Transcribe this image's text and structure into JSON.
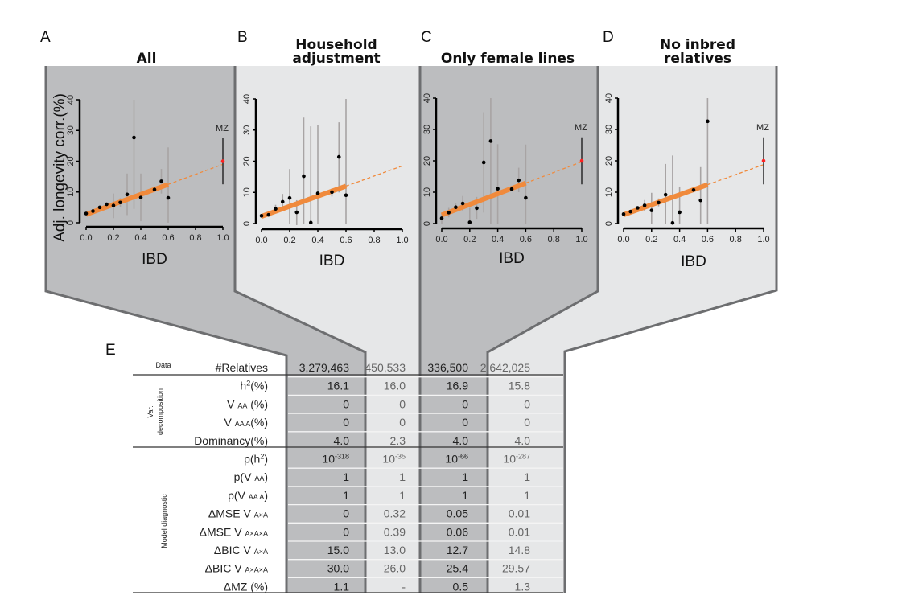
{
  "colors": {
    "dark_panel": "#bcbdbf",
    "light_panel": "#e6e7e8",
    "border": "#6d6e70",
    "fit": "#f08a3c",
    "errbar": "#a8a4a4",
    "mz_point": "#ff2020"
  },
  "panels": [
    {
      "letter": "A",
      "title": [
        "All"
      ]
    },
    {
      "letter": "B",
      "title": [
        "Household",
        "adjustment"
      ]
    },
    {
      "letter": "C",
      "title": [
        "Only female lines"
      ]
    },
    {
      "letter": "D",
      "title": [
        "No inbred",
        "relatives"
      ]
    }
  ],
  "chart_data": [
    {
      "type": "scatter",
      "panel": "A",
      "title": "All",
      "xlabel": "IBD",
      "ylabel": "Adj. longevity corr.(%)",
      "xlim": [
        0,
        1
      ],
      "ylim": [
        0,
        40
      ],
      "xticks": [
        "0.0",
        "0.2",
        "0.4",
        "0.6",
        "0.8",
        "1.0"
      ],
      "yticks": [
        "0",
        "10",
        "20",
        "30",
        "40"
      ],
      "x": [
        0,
        0.05,
        0.1,
        0.15,
        0.2,
        0.25,
        0.3,
        0.35,
        0.4,
        0.5,
        0.55,
        0.6
      ],
      "y": [
        3,
        3.8,
        5,
        6,
        5.6,
        6.6,
        9.2,
        27.7,
        8.2,
        10.8,
        13.5,
        8.1
      ],
      "ci": [
        [
          2.8,
          3.2
        ],
        [
          3.5,
          4.1
        ],
        [
          4.6,
          5.4
        ],
        [
          5.4,
          6.6
        ],
        [
          1.5,
          9.5
        ],
        [
          5,
          8
        ],
        [
          2.5,
          16
        ],
        [
          4.5,
          40
        ],
        [
          0.5,
          16
        ],
        [
          10,
          11.5
        ],
        [
          9.5,
          17.5
        ],
        [
          0,
          24.5
        ]
      ],
      "fit": {
        "intercept": 2.7,
        "slope": 16.3
      },
      "mz": {
        "label": "MZ",
        "x": 1.0,
        "y": 20,
        "ci": [
          12.5,
          27.5
        ]
      }
    },
    {
      "type": "scatter",
      "panel": "B",
      "title": "Household adjustment",
      "xlabel": "IBD",
      "xlim": [
        0,
        1
      ],
      "ylim": [
        0,
        40
      ],
      "xticks": [
        "0.0",
        "0.2",
        "0.4",
        "0.6",
        "0.8",
        "1.0"
      ],
      "yticks": [
        "0",
        "10",
        "20",
        "30",
        "40"
      ],
      "x": [
        0,
        0.05,
        0.1,
        0.15,
        0.2,
        0.25,
        0.3,
        0.35,
        0.4,
        0.5,
        0.55,
        0.6
      ],
      "y": [
        2.5,
        2.8,
        4.7,
        7,
        8.2,
        3.6,
        15.2,
        0.3,
        9.7,
        10.1,
        21.4,
        9.1
      ],
      "ci": [
        [
          2.3,
          2.7
        ],
        [
          2.5,
          3.1
        ],
        [
          3.5,
          6
        ],
        [
          4.5,
          9.5
        ],
        [
          0,
          17.5
        ],
        [
          -0.5,
          7.5
        ],
        [
          0,
          34
        ],
        [
          0,
          31.2
        ],
        [
          0,
          31.5
        ],
        [
          8.7,
          11.3
        ],
        [
          10,
          32.5
        ],
        [
          0,
          40
        ]
      ],
      "fit": {
        "intercept": 2.3,
        "slope": 16.2
      }
    },
    {
      "type": "scatter",
      "panel": "C",
      "title": "Only female lines",
      "xlabel": "IBD",
      "xlim": [
        0,
        1
      ],
      "ylim": [
        0,
        40
      ],
      "xticks": [
        "0.0",
        "0.2",
        "0.4",
        "0.6",
        "0.8",
        "1.0"
      ],
      "yticks": [
        "0",
        "10",
        "20",
        "30",
        "40"
      ],
      "x": [
        0,
        0.05,
        0.1,
        0.15,
        0.2,
        0.25,
        0.3,
        0.35,
        0.4,
        0.5,
        0.55,
        0.6
      ],
      "y": [
        1.7,
        3.5,
        5.2,
        6.4,
        0.4,
        4.9,
        19.5,
        26.3,
        11.1,
        11,
        13.8,
        8.2
      ],
      "ci": [
        [
          0,
          3
        ],
        [
          2,
          5
        ],
        [
          4,
          6.5
        ],
        [
          4,
          8.8
        ],
        [
          0,
          5
        ],
        [
          1.5,
          8.5
        ],
        [
          3.5,
          35.5
        ],
        [
          0,
          40
        ],
        [
          0,
          25.3
        ],
        [
          10.5,
          11.5
        ],
        [
          10,
          17.8
        ],
        [
          0,
          25.2
        ]
      ],
      "fit": {
        "intercept": 2.7,
        "slope": 17
      },
      "mz": {
        "label": "MZ",
        "x": 1.0,
        "y": 20,
        "ci": [
          12.5,
          27.5
        ]
      }
    },
    {
      "type": "scatter",
      "panel": "D",
      "title": "No inbred relatives",
      "xlabel": "IBD",
      "xlim": [
        0,
        1
      ],
      "ylim": [
        0,
        40
      ],
      "xticks": [
        "0.0",
        "0.2",
        "0.4",
        "0.6",
        "0.8",
        "1.0"
      ],
      "yticks": [
        "0",
        "10",
        "20",
        "30",
        "40"
      ],
      "x": [
        0,
        0.05,
        0.1,
        0.15,
        0.2,
        0.25,
        0.3,
        0.35,
        0.4,
        0.5,
        0.55,
        0.6
      ],
      "y": [
        3,
        3.8,
        5,
        5.8,
        4.2,
        6.7,
        9.2,
        0.2,
        3.6,
        10.7,
        7.4,
        32.6
      ],
      "ci": [
        [
          2.8,
          3.2
        ],
        [
          3.5,
          4.1
        ],
        [
          4.6,
          5.4
        ],
        [
          4,
          7.5
        ],
        [
          0,
          9.8
        ],
        [
          5.5,
          8
        ],
        [
          0,
          19
        ],
        [
          0,
          21.7
        ],
        [
          0,
          11.8
        ],
        [
          10.3,
          11.1
        ],
        [
          0,
          18
        ],
        [
          0,
          40
        ]
      ],
      "fit": {
        "intercept": 2.8,
        "slope": 16
      },
      "mz": {
        "label": "MZ",
        "x": 1.0,
        "y": 20,
        "ci": [
          12.5,
          27.5
        ]
      }
    }
  ],
  "table": {
    "letter": "E",
    "group_data": "Data",
    "group_var": [
      "Var.",
      "decomposition"
    ],
    "group_model": "Model diagnostic",
    "rows": [
      {
        "label": [
          {
            "t": "#Relatives"
          }
        ],
        "values": [
          "3,279,463",
          "450,533",
          "336,500",
          "2,642,025"
        ]
      },
      {
        "label": [
          {
            "t": "h"
          },
          {
            "t": "2",
            "sup": true
          },
          {
            "t": "(%)"
          }
        ],
        "values": [
          "16.1",
          "16.0",
          "16.9",
          "15.8"
        ]
      },
      {
        "label": [
          {
            "t": "V "
          },
          {
            "t": "AA",
            "sub": true
          },
          {
            "t": " (%)"
          }
        ],
        "values": [
          "0",
          "0",
          "0",
          "0"
        ]
      },
      {
        "label": [
          {
            "t": "V "
          },
          {
            "t": "AA A",
            "sub": true
          },
          {
            "t": "(%)"
          }
        ],
        "values": [
          "0",
          "0",
          "0",
          "0"
        ]
      },
      {
        "label": [
          {
            "t": "Dominancy(%)"
          }
        ],
        "values": [
          "4.0",
          "2.3",
          "4.0",
          "4.0"
        ]
      },
      {
        "label": [
          {
            "t": "p(h"
          },
          {
            "t": "2",
            "sup": true
          },
          {
            "t": ")"
          }
        ],
        "values": [
          {
            "b": "10",
            "e": "-318"
          },
          {
            "b": "10",
            "e": "-35"
          },
          {
            "b": "10",
            "e": "-66"
          },
          {
            "b": "10",
            "e": "-287"
          }
        ]
      },
      {
        "label": [
          {
            "t": "p(V "
          },
          {
            "t": "AA",
            "sub": true
          },
          {
            "t": ")"
          }
        ],
        "values": [
          "1",
          "1",
          "1",
          "1"
        ]
      },
      {
        "label": [
          {
            "t": "p(V "
          },
          {
            "t": "AA A",
            "sub": true
          },
          {
            "t": ")"
          }
        ],
        "values": [
          "1",
          "1",
          "1",
          "1"
        ]
      },
      {
        "label": [
          {
            "t": "ΔMSE  V "
          },
          {
            "t": "A×A",
            "sub": true
          }
        ],
        "values": [
          "0",
          "0.32",
          "0.05",
          "0.01"
        ]
      },
      {
        "label": [
          {
            "t": "ΔMSE  V "
          },
          {
            "t": "A×A×A",
            "sub": true
          }
        ],
        "values": [
          "0",
          "0.39",
          "0.06",
          "0.01"
        ]
      },
      {
        "label": [
          {
            "t": "ΔBIC  V "
          },
          {
            "t": "A×A",
            "sub": true
          }
        ],
        "values": [
          "15.0",
          "13.0",
          "12.7",
          "14.8"
        ]
      },
      {
        "label": [
          {
            "t": "ΔBIC  V "
          },
          {
            "t": "A×A×A",
            "sub": true
          }
        ],
        "values": [
          "30.0",
          "26.0",
          "25.4",
          "29.57"
        ]
      },
      {
        "label": [
          {
            "t": "ΔMZ (%)"
          }
        ],
        "values": [
          "1.1",
          "-",
          "0.5",
          "1.3"
        ]
      }
    ]
  }
}
